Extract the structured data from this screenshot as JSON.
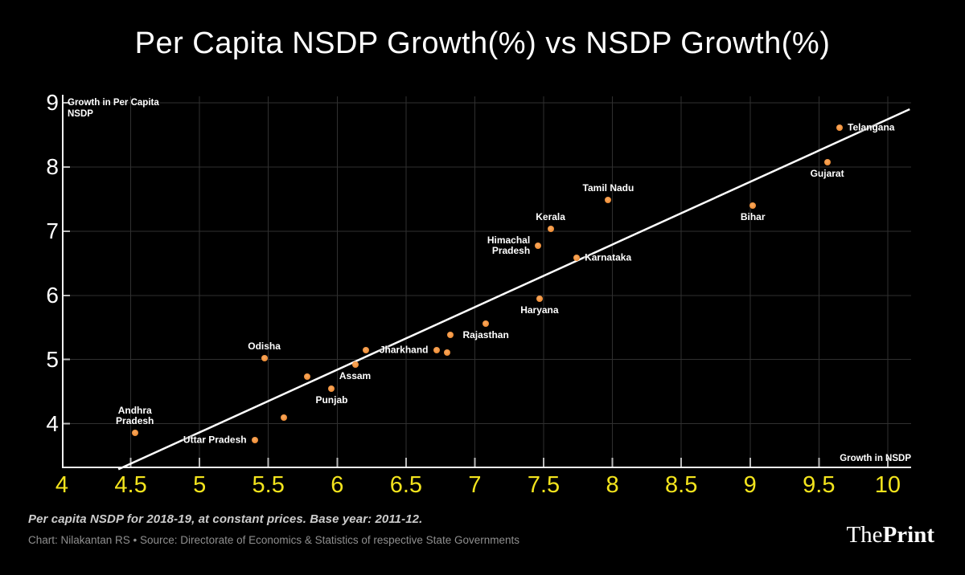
{
  "title": "Per Capita NSDP Growth(%) vs NSDP Growth(%)",
  "chart_data": {
    "type": "scatter",
    "title": "Per Capita NSDP Growth(%) vs NSDP Growth(%)",
    "x_axis": {
      "label": "Growth in NSDP",
      "min": 4,
      "max": 10.17,
      "ticks": [
        {
          "v": 4,
          "label": "4"
        },
        {
          "v": 4.5,
          "label": "4.5"
        },
        {
          "v": 5,
          "label": "5"
        },
        {
          "v": 5.5,
          "label": "5.5"
        },
        {
          "v": 6,
          "label": "6"
        },
        {
          "v": 6.5,
          "label": "6.5"
        },
        {
          "v": 7,
          "label": "7"
        },
        {
          "v": 7.5,
          "label": "7.5"
        },
        {
          "v": 8,
          "label": "8"
        },
        {
          "v": 8.5,
          "label": "8.5"
        },
        {
          "v": 9,
          "label": "9"
        },
        {
          "v": 9.5,
          "label": "9.5"
        },
        {
          "v": 10,
          "label": "10"
        }
      ]
    },
    "y_axis": {
      "label": "Growth in Per Capita NSDP",
      "min": 3.295,
      "max": 9.163,
      "ticks": [
        {
          "v": 4,
          "label": "4"
        },
        {
          "v": 5,
          "label": "5"
        },
        {
          "v": 6,
          "label": "6"
        },
        {
          "v": 7,
          "label": "7"
        },
        {
          "v": 8,
          "label": "8"
        },
        {
          "v": 9,
          "label": "9"
        }
      ]
    },
    "grid": true,
    "legend": "none",
    "trendline": {
      "x1": 4.41,
      "y1": 3.29,
      "x2": 10.16,
      "y2": 8.9
    },
    "colors": {
      "background": "#000000",
      "point": "#F1913A",
      "trend": "#FFFFFF",
      "grid": "#303030",
      "axis": "#F2F2F2",
      "tick_mark": "#BBBBBB",
      "x_tick_label": "#F3E41D",
      "y_tick_label": "#FFFFFF",
      "state_label": "#FFFFFF"
    },
    "points": [
      {
        "state": "Andhra Pradesh",
        "x": 4.53,
        "y": 3.86,
        "label_lines": [
          "Andhra",
          "Pradesh"
        ],
        "label_pos": "above"
      },
      {
        "state": "Uttar Pradesh",
        "x": 5.4,
        "y": 3.75,
        "label_lines": [
          "Uttar Pradesh"
        ],
        "label_pos": "left"
      },
      {
        "state": "",
        "x": 5.61,
        "y": 4.1,
        "label_lines": [],
        "label_pos": "none"
      },
      {
        "state": "Odisha",
        "x": 5.47,
        "y": 5.02,
        "label_lines": [
          "Odisha"
        ],
        "label_pos": "above"
      },
      {
        "state": "",
        "x": 5.78,
        "y": 4.74,
        "label_lines": [],
        "label_pos": "none"
      },
      {
        "state": "Punjab",
        "x": 5.96,
        "y": 4.55,
        "label_lines": [
          "Punjab"
        ],
        "label_pos": "below"
      },
      {
        "state": "Assam",
        "x": 6.13,
        "y": 4.92,
        "label_lines": [
          "Assam"
        ],
        "label_pos": "below"
      },
      {
        "state": "",
        "x": 6.21,
        "y": 5.15,
        "label_lines": [],
        "label_pos": "none"
      },
      {
        "state": "Jharkhand",
        "x": 6.72,
        "y": 5.15,
        "label_lines": [
          "Jharkhand"
        ],
        "label_pos": "left"
      },
      {
        "state": "",
        "x": 6.8,
        "y": 5.11,
        "label_lines": [],
        "label_pos": "none"
      },
      {
        "state": "",
        "x": 6.82,
        "y": 5.39,
        "label_lines": [],
        "label_pos": "none"
      },
      {
        "state": "Rajasthan",
        "x": 7.08,
        "y": 5.56,
        "label_lines": [
          "Rajasthan"
        ],
        "label_pos": "below"
      },
      {
        "state": "Haryana",
        "x": 7.47,
        "y": 5.95,
        "label_lines": [
          "Haryana"
        ],
        "label_pos": "below"
      },
      {
        "state": "Himachal Pradesh",
        "x": 7.46,
        "y": 6.77,
        "label_lines": [
          "Himachal",
          "Pradesh"
        ],
        "label_pos": "left"
      },
      {
        "state": "Karnataka",
        "x": 7.74,
        "y": 6.58,
        "label_lines": [
          "Karnataka"
        ],
        "label_pos": "right"
      },
      {
        "state": "Kerala",
        "x": 7.55,
        "y": 7.04,
        "label_lines": [
          "Kerala"
        ],
        "label_pos": "above"
      },
      {
        "state": "Tamil Nadu",
        "x": 7.97,
        "y": 7.49,
        "label_lines": [
          "Tamil Nadu"
        ],
        "label_pos": "above"
      },
      {
        "state": "Bihar",
        "x": 9.02,
        "y": 7.4,
        "label_lines": [
          "Bihar"
        ],
        "label_pos": "below"
      },
      {
        "state": "Gujarat",
        "x": 9.56,
        "y": 8.08,
        "label_lines": [
          "Gujarat"
        ],
        "label_pos": "below"
      },
      {
        "state": "Telangana",
        "x": 9.65,
        "y": 8.61,
        "label_lines": [
          "Telangana"
        ],
        "label_pos": "right"
      }
    ]
  },
  "footer": {
    "note": "Per capita NSDP for 2018-19, at constant prices. Base year: 2011-12.",
    "credit": "Chart: Nilakantan RS • Source: Directorate of Economics & Statistics of respective State Governments",
    "logo_regular": "The",
    "logo_bold": "Print"
  }
}
